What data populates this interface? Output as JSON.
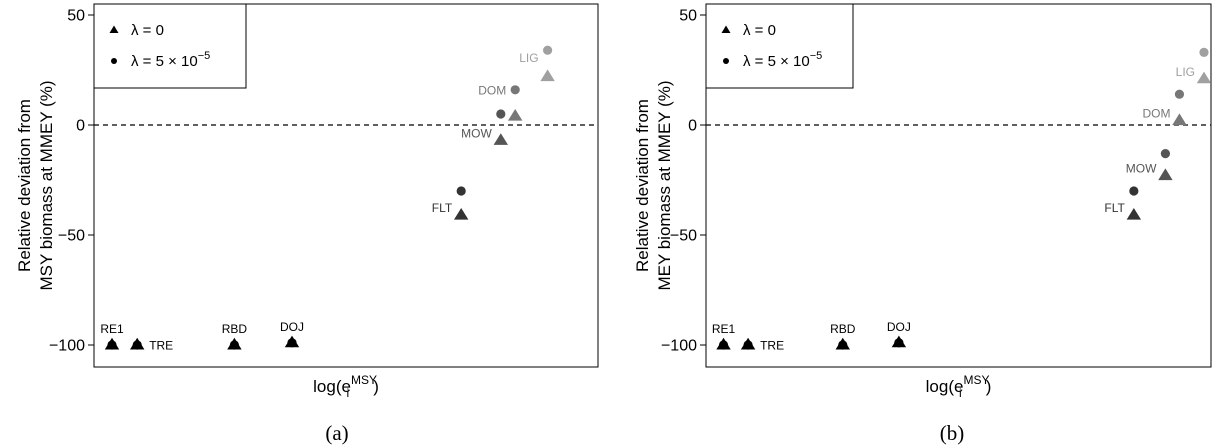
{
  "chart_data": [
    {
      "type": "scatter",
      "caption": "(a)",
      "ylabel_line1": "Relative deviation from",
      "ylabel_line2": "MSY biomass at MMEY (%)",
      "xlabel": {
        "base": "log(e",
        "sub": "i",
        "sup": "MSY",
        "close": ")"
      },
      "ylim": [
        -110,
        55
      ],
      "xlim": [
        0,
        14
      ],
      "yticks": [
        -100,
        -50,
        0,
        50
      ],
      "ytick_labels": [
        "−100",
        "−50",
        "0",
        "50"
      ],
      "hline": 0,
      "legend": [
        {
          "marker": "triangle",
          "label": "λ = 0"
        },
        {
          "marker": "circle",
          "label": "λ = 5 × 10",
          "sup": "−5"
        }
      ],
      "series": [
        {
          "name": "λ = 0",
          "marker": "triangle",
          "points": [
            {
              "label": "RE1",
              "x": 0.5,
              "y": -100,
              "color": "#000000"
            },
            {
              "label": "TRE",
              "x": 1.2,
              "y": -100,
              "color": "#000000"
            },
            {
              "label": "RBD",
              "x": 3.9,
              "y": -100,
              "color": "#000000"
            },
            {
              "label": "DOJ",
              "x": 5.5,
              "y": -99,
              "color": "#000000"
            },
            {
              "label": "FLT",
              "x": 10.2,
              "y": -41,
              "color": "#333333"
            },
            {
              "label": "MOW",
              "x": 11.3,
              "y": -7,
              "color": "#555555"
            },
            {
              "label": "DOM",
              "x": 11.7,
              "y": 4,
              "color": "#777777"
            },
            {
              "label": "LIG",
              "x": 12.6,
              "y": 22,
              "color": "#a0a0a0"
            }
          ]
        },
        {
          "name": "λ = 5 × 10⁻⁵",
          "marker": "circle",
          "points": [
            {
              "label": "RE1",
              "x": 0.5,
              "y": -100,
              "color": "#000000"
            },
            {
              "label": "TRE",
              "x": 1.2,
              "y": -100,
              "color": "#000000"
            },
            {
              "label": "RBD",
              "x": 3.9,
              "y": -100,
              "color": "#000000"
            },
            {
              "label": "DOJ",
              "x": 5.5,
              "y": -99,
              "color": "#000000"
            },
            {
              "label": "FLT",
              "x": 10.2,
              "y": -30,
              "color": "#333333"
            },
            {
              "label": "MOW",
              "x": 11.3,
              "y": 5,
              "color": "#555555"
            },
            {
              "label": "DOM",
              "x": 11.7,
              "y": 16,
              "color": "#777777"
            },
            {
              "label": "LIG",
              "x": 12.6,
              "y": 34,
              "color": "#a0a0a0"
            }
          ]
        }
      ],
      "point_labels": [
        {
          "text": "RE1",
          "x": 0.5,
          "y": -100,
          "pos": "above",
          "color": "#000000"
        },
        {
          "text": "TRE",
          "x": 1.2,
          "y": -100,
          "pos": "right",
          "color": "#000000"
        },
        {
          "text": "RBD",
          "x": 3.9,
          "y": -100,
          "pos": "above",
          "color": "#000000"
        },
        {
          "text": "DOJ",
          "x": 5.5,
          "y": -99,
          "pos": "above",
          "color": "#000000"
        },
        {
          "text": "FLT",
          "x": 10.2,
          "y": -41,
          "pos": "upper-left",
          "color": "#333333"
        },
        {
          "text": "MOW",
          "x": 11.3,
          "y": -7,
          "pos": "upper-left",
          "color": "#555555"
        },
        {
          "text": "DOM",
          "x": 11.7,
          "y": 16,
          "pos": "left",
          "color": "#777777"
        },
        {
          "text": "LIG",
          "x": 12.6,
          "y": 34,
          "pos": "lower-left",
          "color": "#a0a0a0"
        }
      ]
    },
    {
      "type": "scatter",
      "caption": "(b)",
      "ylabel_line1": "Relative deviation from",
      "ylabel_line2": "MEY biomass at MMEY (%)",
      "xlabel": {
        "base": "log(e",
        "sub": "i",
        "sup": "MSY",
        "close": ")"
      },
      "ylim": [
        -110,
        55
      ],
      "xlim": [
        0,
        14
      ],
      "yticks": [
        -100,
        -50,
        0,
        50
      ],
      "ytick_labels": [
        "−100",
        "−50",
        "0",
        "50"
      ],
      "hline": 0,
      "legend": [
        {
          "marker": "triangle",
          "label": "λ = 0"
        },
        {
          "marker": "circle",
          "label": "λ = 5 × 10",
          "sup": "−5"
        }
      ],
      "series": [
        {
          "name": "λ = 0",
          "marker": "triangle",
          "points": [
            {
              "label": "RE1",
              "x": 0.5,
              "y": -100,
              "color": "#000000"
            },
            {
              "label": "TRE",
              "x": 1.2,
              "y": -100,
              "color": "#000000"
            },
            {
              "label": "RBD",
              "x": 3.9,
              "y": -100,
              "color": "#000000"
            },
            {
              "label": "DOJ",
              "x": 5.5,
              "y": -99,
              "color": "#000000"
            },
            {
              "label": "FLT",
              "x": 12.2,
              "y": -41,
              "color": "#333333"
            },
            {
              "label": "MOW",
              "x": 13.1,
              "y": -23,
              "color": "#555555"
            },
            {
              "label": "DOM",
              "x": 13.5,
              "y": 2,
              "color": "#777777"
            },
            {
              "label": "LIG",
              "x": 14.2,
              "y": 21,
              "color": "#a0a0a0"
            }
          ]
        },
        {
          "name": "λ = 5 × 10⁻⁵",
          "marker": "circle",
          "points": [
            {
              "label": "RE1",
              "x": 0.5,
              "y": -100,
              "color": "#000000"
            },
            {
              "label": "TRE",
              "x": 1.2,
              "y": -100,
              "color": "#000000"
            },
            {
              "label": "RBD",
              "x": 3.9,
              "y": -100,
              "color": "#000000"
            },
            {
              "label": "DOJ",
              "x": 5.5,
              "y": -99,
              "color": "#000000"
            },
            {
              "label": "FLT",
              "x": 12.2,
              "y": -30,
              "color": "#333333"
            },
            {
              "label": "MOW",
              "x": 13.1,
              "y": -13,
              "color": "#555555"
            },
            {
              "label": "DOM",
              "x": 13.5,
              "y": 14,
              "color": "#777777"
            },
            {
              "label": "LIG",
              "x": 14.2,
              "y": 33,
              "color": "#a0a0a0"
            }
          ]
        }
      ],
      "point_labels": [
        {
          "text": "RE1",
          "x": 0.5,
          "y": -100,
          "pos": "above",
          "color": "#000000"
        },
        {
          "text": "TRE",
          "x": 1.2,
          "y": -100,
          "pos": "right",
          "color": "#000000"
        },
        {
          "text": "RBD",
          "x": 3.9,
          "y": -100,
          "pos": "above",
          "color": "#000000"
        },
        {
          "text": "DOJ",
          "x": 5.5,
          "y": -99,
          "pos": "above",
          "color": "#000000"
        },
        {
          "text": "FLT",
          "x": 12.2,
          "y": -41,
          "pos": "upper-left",
          "color": "#333333"
        },
        {
          "text": "MOW",
          "x": 13.1,
          "y": -23,
          "pos": "upper-left",
          "color": "#555555"
        },
        {
          "text": "DOM",
          "x": 13.5,
          "y": 2,
          "pos": "upper-left",
          "color": "#777777"
        },
        {
          "text": "LIG",
          "x": 14.2,
          "y": 21,
          "pos": "upper-left",
          "color": "#a0a0a0"
        }
      ]
    }
  ]
}
